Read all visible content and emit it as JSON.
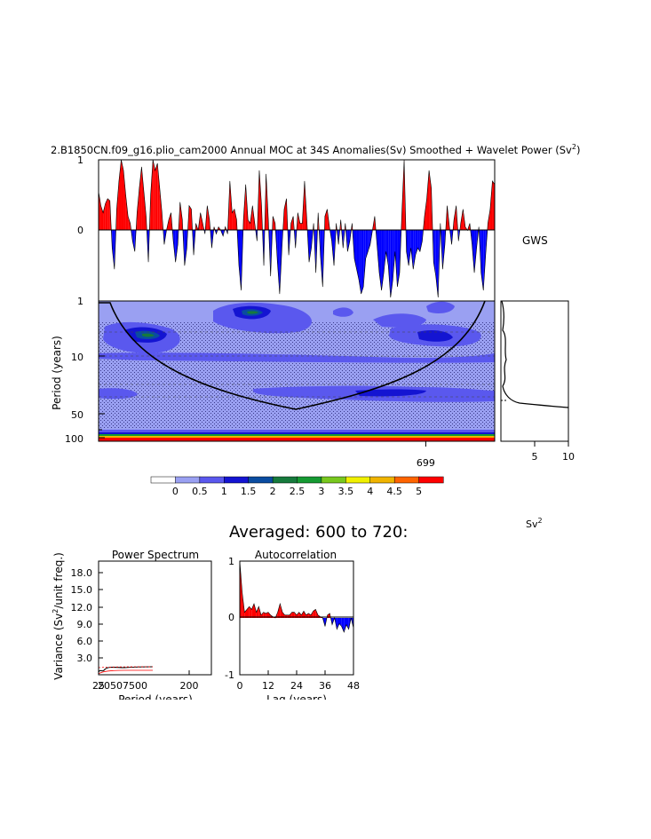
{
  "figure": {
    "title_main": "2.B1850CN.f09_g16.plio_cam2000 Annual MOC at 34S Anomalies(Sv) Smoothed + Wavelet Power (Sv",
    "title_sup": "2",
    "title_close": ")",
    "averaged_label": "Averaged: 600 to 720:",
    "unit_main": "Sv",
    "unit_sup": "2"
  },
  "chart_data": [
    {
      "id": "timeseries",
      "type": "area",
      "ylim": [
        -1,
        1
      ],
      "y_ticks": [
        "1",
        "0",
        "-1"
      ],
      "side_label": "GWS",
      "colors": {
        "positive": "#ff0000",
        "negative": "#0000ff"
      },
      "values": [
        0.55,
        0.35,
        0.25,
        0.38,
        0.45,
        0.42,
        -0.25,
        -0.55,
        0.3,
        0.7,
        1.0,
        0.85,
        0.5,
        0.2,
        0.1,
        -0.15,
        -0.3,
        0.25,
        0.6,
        0.9,
        0.55,
        0.2,
        -0.45,
        0.5,
        1.0,
        0.85,
        0.95,
        0.6,
        0.25,
        -0.2,
        0.0,
        0.15,
        0.25,
        -0.15,
        -0.45,
        -0.2,
        0.4,
        0.15,
        -0.5,
        -0.25,
        0.35,
        0.3,
        -0.35,
        0.1,
        0.0,
        0.25,
        0.1,
        -0.05,
        0.35,
        0.15,
        -0.25,
        0.05,
        -0.05,
        0.05,
        0.0,
        -0.08,
        0.05,
        -0.05,
        0.7,
        0.25,
        0.3,
        0.15,
        -0.5,
        -0.85,
        0.15,
        0.65,
        0.15,
        0.1,
        0.35,
        0.1,
        -0.15,
        0.85,
        0.35,
        -0.5,
        0.8,
        0.15,
        -0.65,
        0.2,
        0.1,
        -0.45,
        -0.9,
        -0.25,
        0.3,
        0.45,
        -0.35,
        0.1,
        0.2,
        -0.25,
        0.25,
        0.1,
        0.1,
        0.7,
        0.15,
        -0.45,
        -0.25,
        0.1,
        -0.6,
        0.25,
        -0.35,
        -0.8,
        0.2,
        0.3,
        0.05,
        -0.15,
        -0.5,
        0.1,
        -0.2,
        0.15,
        -0.25,
        0.1,
        -0.3,
        -0.15,
        0.1,
        -0.4,
        -0.55,
        -0.7,
        -0.9,
        -0.8,
        -0.4,
        -0.3,
        -0.2,
        0.0,
        0.2,
        -0.2,
        -0.6,
        -0.85,
        -0.6,
        -0.3,
        -0.5,
        -0.95,
        -0.7,
        -0.3,
        -0.8,
        -0.6,
        0.25,
        1.0,
        -0.3,
        -0.5,
        -0.25,
        -0.55,
        -0.35,
        -0.25,
        -0.3,
        -0.15,
        0.2,
        0.45,
        0.85,
        0.6,
        -0.45,
        -0.65,
        -0.95,
        0.1,
        -0.55,
        -0.2,
        0.35,
        0.05,
        -0.2,
        0.15,
        0.35,
        -0.15,
        0.1,
        0.3,
        0.05,
        0.0,
        0.1,
        -0.2,
        -0.6,
        -0.25,
        0.05,
        -0.6,
        -0.85,
        -0.35,
        0.1,
        0.3,
        0.7,
        0.65
      ]
    },
    {
      "id": "wavelet",
      "type": "heatmap",
      "ylabel": "Period (years)",
      "y_ticks": [
        "1",
        "10",
        "50",
        "100"
      ],
      "x_tick": "699",
      "x_tick_fraction": 0.826,
      "colors": {
        "background": "#9aa0f2",
        "level1": "#5a58ee",
        "level2": "#1414d2",
        "level3": "#0a4ca0",
        "level4": "#167a3c",
        "stipple": "#3a3a8a"
      },
      "cone_period_max": 45
    },
    {
      "id": "gws",
      "type": "line",
      "x_ticks": [
        "5",
        "10"
      ],
      "xlim": [
        0,
        10
      ]
    },
    {
      "id": "colorbar",
      "type": "table",
      "labels": [
        "0",
        "0.5",
        "1",
        "1.5",
        "2",
        "2.5",
        "3",
        "3.5",
        "4",
        "4.5",
        "5"
      ],
      "colors": [
        "#ffffff",
        "#9aa0f2",
        "#5a58ee",
        "#1414d2",
        "#0a4ca0",
        "#167a3c",
        "#159a32",
        "#78c81e",
        "#f0f000",
        "#f0b400",
        "#ff6400",
        "#ff0000"
      ]
    },
    {
      "id": "power_spectrum",
      "type": "line",
      "title": "Power Spectrum",
      "ylabel_main": "Variance (Sv",
      "ylabel_sup": "2",
      "ylabel_rest": "/unit freq.)",
      "xlabel": "Period (years)",
      "y_ticks": [
        "18.0",
        "15.0",
        "12.0",
        "9.0",
        "6.0",
        "3.0"
      ],
      "ylim": [
        0,
        20
      ],
      "x_ticks_cluster": "25",
      "x_ticks_cluster_2": "20507500",
      "x_tick_200": "200",
      "xlim": [
        0,
        250
      ]
    },
    {
      "id": "autocorrelation",
      "type": "area",
      "title": "Autocorrelation",
      "xlabel": "Lag (years)",
      "y_ticks": [
        "1",
        "0",
        "-1"
      ],
      "ylim": [
        -1,
        1
      ],
      "x_ticks": [
        "0",
        "12",
        "24",
        "36",
        "48"
      ],
      "xlim": [
        0,
        48
      ],
      "values": [
        1.0,
        0.45,
        0.1,
        0.15,
        0.2,
        0.15,
        0.25,
        0.1,
        0.2,
        0.05,
        0.1,
        0.08,
        0.1,
        0.05,
        0.02,
        0.0,
        0.1,
        0.25,
        0.1,
        0.05,
        0.05,
        0.05,
        0.1,
        0.1,
        0.05,
        0.1,
        0.05,
        0.12,
        0.05,
        0.08,
        0.05,
        0.12,
        0.15,
        0.05,
        0.02,
        0.0,
        -0.15,
        0.05,
        0.08,
        -0.12,
        0.0,
        -0.2,
        -0.1,
        -0.15,
        -0.25,
        -0.12,
        -0.2,
        0.0,
        -0.18
      ]
    }
  ]
}
